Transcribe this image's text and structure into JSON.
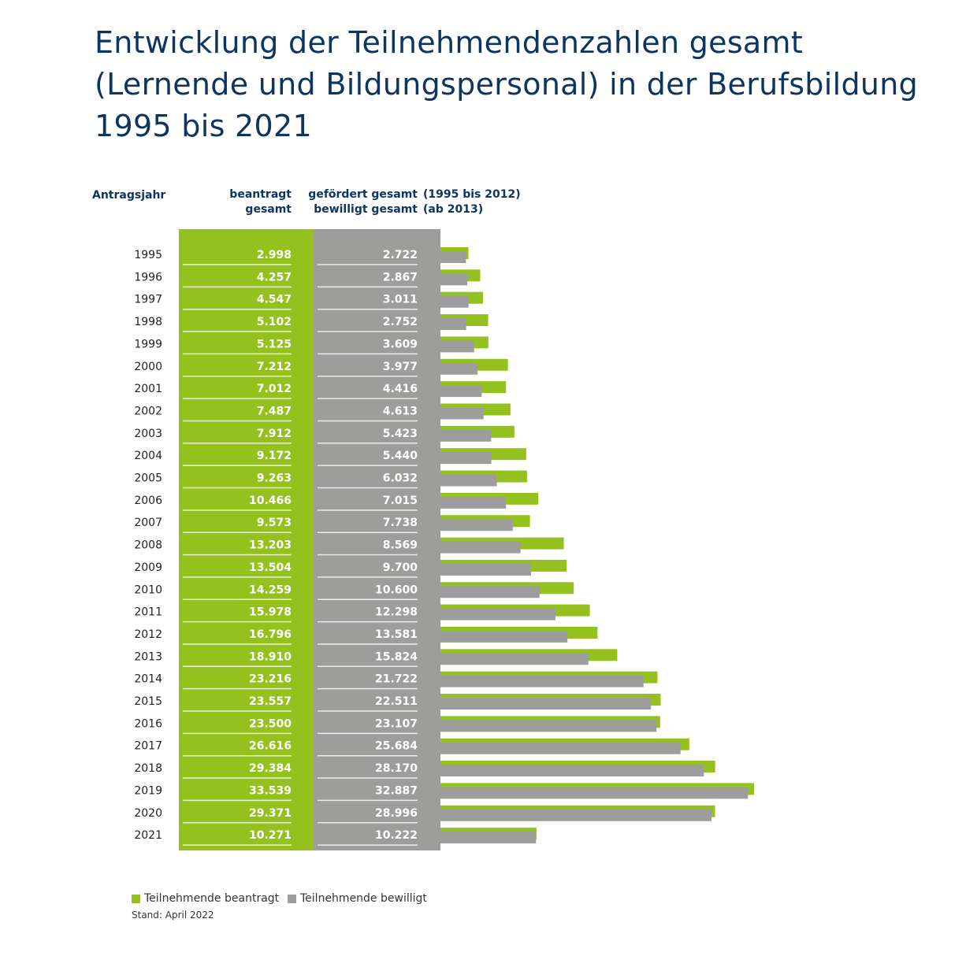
{
  "title_lines": [
    "Entwicklung der Teilnehmendenzahlen gesamt",
    "(Lernende und Bildungspersonal) in der Berufsbildung",
    "1995 bis 2021"
  ],
  "headers": {
    "year": "Antragsjahr",
    "applied_1": "beantragt",
    "applied_2": "gesamt",
    "granted_1": "gefördert gesamt",
    "granted_1b": "(1995 bis 2012)",
    "granted_2": "bewilligt gesamt",
    "granted_2b": "(ab 2013)"
  },
  "legend": {
    "applied": "Teilnehmende beantragt",
    "granted": "Teilnehmende bewilligt"
  },
  "footnote": "Stand: April 2022",
  "colors": {
    "applied": "#95c11f",
    "granted": "#9d9d9c",
    "title": "#0e3560"
  },
  "chart_data": {
    "type": "bar",
    "orientation": "horizontal",
    "categories": [
      "1995",
      "1996",
      "1997",
      "1998",
      "1999",
      "2000",
      "2001",
      "2002",
      "2003",
      "2004",
      "2005",
      "2006",
      "2007",
      "2008",
      "2009",
      "2010",
      "2011",
      "2012",
      "2013",
      "2014",
      "2015",
      "2016",
      "2017",
      "2018",
      "2019",
      "2020",
      "2021"
    ],
    "series": [
      {
        "name": "Teilnehmende beantragt",
        "labels": [
          "2.998",
          "4.257",
          "4.547",
          "5.102",
          "5.125",
          "7.212",
          "7.012",
          "7.487",
          "7.912",
          "9.172",
          "9.263",
          "10.466",
          "9.573",
          "13.203",
          "13.504",
          "14.259",
          "15.978",
          "16.796",
          "18.910",
          "23.216",
          "23.557",
          "23.500",
          "26.616",
          "29.384",
          "33.539",
          "29.371",
          "10.271"
        ],
        "values": [
          2998,
          4257,
          4547,
          5102,
          5125,
          7212,
          7012,
          7487,
          7912,
          9172,
          9263,
          10466,
          9573,
          13203,
          13504,
          14259,
          15978,
          16796,
          18910,
          23216,
          23557,
          23500,
          26616,
          29384,
          33539,
          29371,
          10271
        ]
      },
      {
        "name": "Teilnehmende bewilligt",
        "labels": [
          "2.722",
          "2.867",
          "3.011",
          "2.752",
          "3.609",
          "3.977",
          "4.416",
          "4.613",
          "5.423",
          "5.440",
          "6.032",
          "7.015",
          "7.738",
          "8.569",
          "9.700",
          "10.600",
          "12.298",
          "13.581",
          "15.824",
          "21.722",
          "22.511",
          "23.107",
          "25.684",
          "28.170",
          "32.887",
          "28.996",
          "10.222"
        ],
        "values": [
          2722,
          2867,
          3011,
          2752,
          3609,
          3977,
          4416,
          4613,
          5423,
          5440,
          6032,
          7015,
          7738,
          8569,
          9700,
          10600,
          12298,
          13581,
          15824,
          21722,
          22511,
          23107,
          25684,
          28170,
          32887,
          28996,
          10222
        ]
      }
    ],
    "grid": false,
    "legend_position": "bottom-left"
  }
}
